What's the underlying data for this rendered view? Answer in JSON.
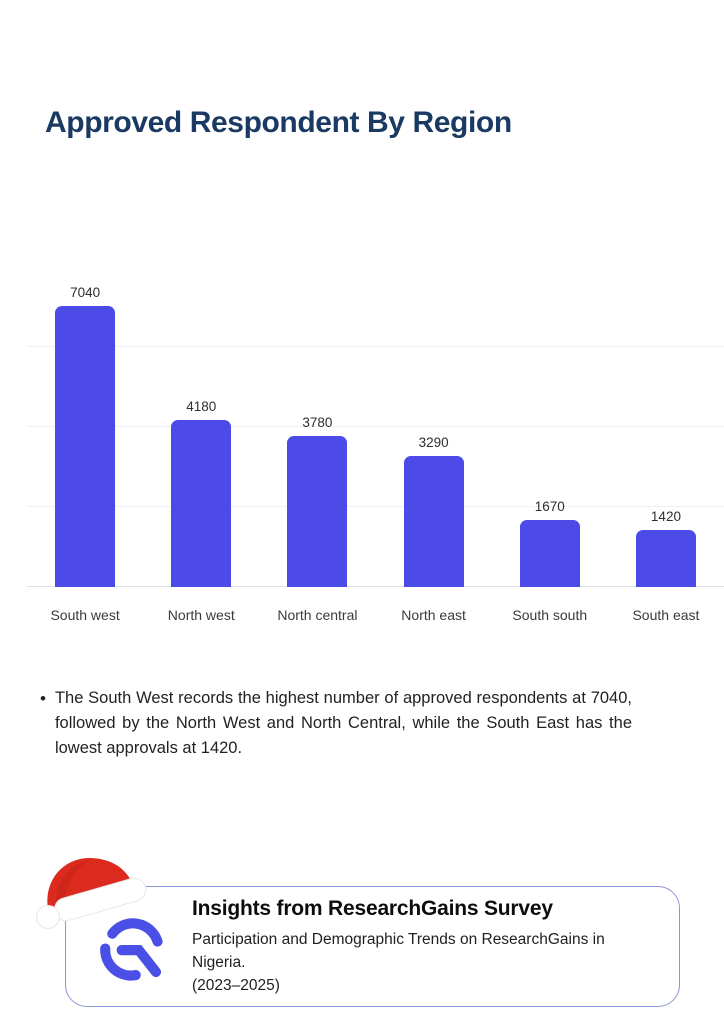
{
  "page": {
    "title": "Approved Respondent By Region"
  },
  "chart_data": {
    "type": "bar",
    "title": "Approved Respondent By Region",
    "categories": [
      "South west",
      "North west",
      "North central",
      "North east",
      "South south",
      "South east"
    ],
    "values": [
      7040,
      4180,
      3780,
      3290,
      1670,
      1420
    ],
    "xlabel": "",
    "ylabel": "",
    "ylim": [
      0,
      7680
    ],
    "gridline_values": [
      0,
      2000,
      4000,
      6000
    ],
    "grid": true,
    "legend": false,
    "value_labels": true,
    "bar_color": "#4d4be7"
  },
  "insight": {
    "bullet": "•",
    "text": "The South West records the highest number of approved respondents at 7040, followed by the North West and North Central, while the South East has the lowest approvals at 1420."
  },
  "footer_card": {
    "title": "Insights from ResearchGains Survey",
    "subtitle_line1": "Participation and Demographic Trends on ResearchGains in Nigeria.",
    "subtitle_line2": "(2023–2025)"
  },
  "colors": {
    "title_text": "#1b3a63",
    "bar": "#4d4be7",
    "card_border": "#8f94d9",
    "logo_blue": "#4a4fe6",
    "hat_red": "#dc2a1e"
  }
}
